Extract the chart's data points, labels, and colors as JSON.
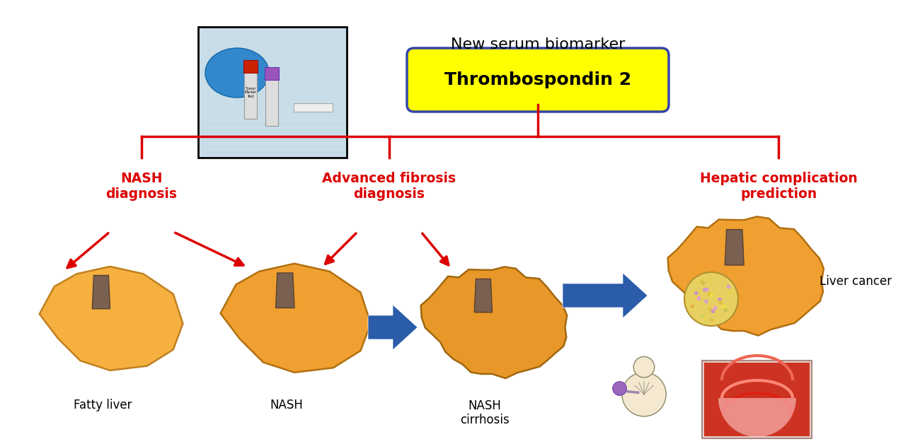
{
  "title_text": "New serum biomarker",
  "biomarker_label": "Thrombospondin 2",
  "bg_color": "#ffffff",
  "red_color": "#dd0000",
  "blue_arrow_color": "#2a5caa",
  "yellow_box_color": "#ffff00",
  "liver_color": "#f0a030",
  "liver_dark": "#b07820",
  "liver_edge": "#c07818",
  "bile_duct_color": "#7a6050",
  "nash_diag": "NASH\ndiagnosis",
  "adv_fibrosis": "Advanced fibrosis\ndiagnosis",
  "hepatic_comp": "Hepatic complication\nprediction",
  "label_fatty": "Fatty liver",
  "label_nash": "NASH",
  "label_cirrhosis": "NASH\ncirrhosis",
  "label_liver_cancer": "Liver cancer",
  "figsize": [
    13.0,
    6.28
  ]
}
